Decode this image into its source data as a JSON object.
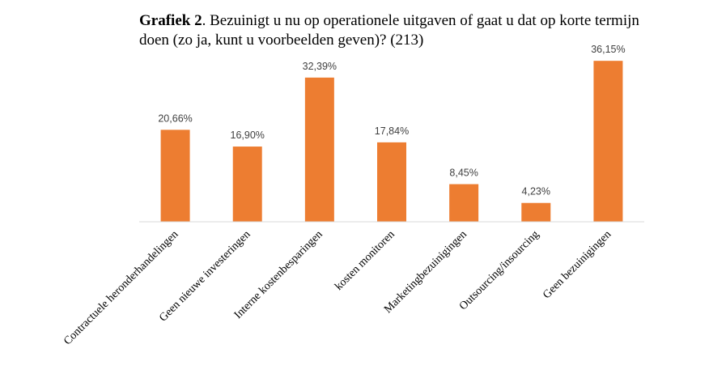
{
  "title": {
    "bold": "Grafiek 2",
    "rest": ". Bezuinigt u nu op operationele uitgaven of gaat u dat op korte termijn doen (zo ja, kunt u voorbeelden geven)? (213)"
  },
  "colors": {
    "bar": "#ED7D31",
    "axis": "#D9D9D9"
  },
  "chart_data": {
    "type": "bar",
    "categories": [
      "Contractuele heronderhandelingen",
      "Geen nieuwe investeringen",
      "Interne kostenbesparingen",
      "kosten monitoren",
      "Marketingbezuinigingen",
      "Outsourcing/insourcing",
      "Geen bezuinigingen"
    ],
    "values": [
      20.66,
      16.9,
      32.39,
      17.84,
      8.45,
      4.23,
      36.15
    ],
    "value_labels": [
      "20,66%",
      "16,90%",
      "32,39%",
      "17,84%",
      "8,45%",
      "4,23%",
      "36,15%"
    ],
    "ylim": [
      0,
      40
    ],
    "grid": false,
    "legend": "none"
  }
}
